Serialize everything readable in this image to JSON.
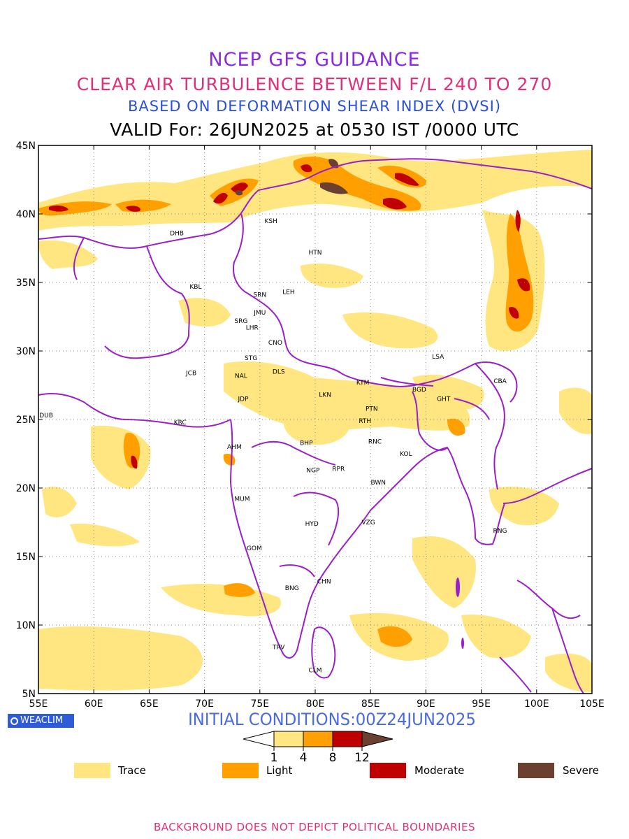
{
  "header": {
    "title": "NCEP GFS GUIDANCE",
    "subtitle": "CLEAR AIR TURBULENCE BETWEEN F/L 240 TO 270",
    "index": "BASED ON DEFORMATION SHEAR INDEX (DVSI)",
    "valid": "VALID For: 26JUN2025 at 0530 IST /0000 UTC"
  },
  "map": {
    "lon_range": [
      55,
      105
    ],
    "lat_range": [
      5,
      45
    ],
    "lon_ticks": [
      "55E",
      "60E",
      "65E",
      "70E",
      "75E",
      "80E",
      "85E",
      "90E",
      "95E",
      "100E",
      "105E"
    ],
    "lat_ticks": [
      "45N",
      "40N",
      "35N",
      "30N",
      "25N",
      "20N",
      "15N",
      "10N",
      "5N"
    ],
    "grid": "dotted",
    "boundary_color": "#9b1fc8",
    "stations": [
      {
        "code": "KSH",
        "lon": 76.0,
        "lat": 39.5
      },
      {
        "code": "DHB",
        "lon": 67.5,
        "lat": 38.6
      },
      {
        "code": "HTN",
        "lon": 80.0,
        "lat": 37.2
      },
      {
        "code": "KBL",
        "lon": 69.2,
        "lat": 34.7
      },
      {
        "code": "SRN",
        "lon": 75.0,
        "lat": 34.1
      },
      {
        "code": "LEH",
        "lon": 77.6,
        "lat": 34.3
      },
      {
        "code": "JMU",
        "lon": 75.0,
        "lat": 32.8
      },
      {
        "code": "SRG",
        "lon": 73.3,
        "lat": 32.2
      },
      {
        "code": "LHR",
        "lon": 74.3,
        "lat": 31.7
      },
      {
        "code": "CNO",
        "lon": 76.4,
        "lat": 30.6
      },
      {
        "code": "STG",
        "lon": 74.2,
        "lat": 29.5
      },
      {
        "code": "DLS",
        "lon": 76.7,
        "lat": 28.5
      },
      {
        "code": "JCB",
        "lon": 68.8,
        "lat": 28.4
      },
      {
        "code": "NAL",
        "lon": 73.3,
        "lat": 28.2
      },
      {
        "code": "LSA",
        "lon": 91.1,
        "lat": 29.6
      },
      {
        "code": "KTM",
        "lon": 84.3,
        "lat": 27.7
      },
      {
        "code": "CBA",
        "lon": 96.7,
        "lat": 27.8
      },
      {
        "code": "LKN",
        "lon": 80.9,
        "lat": 26.8
      },
      {
        "code": "BGD",
        "lon": 89.4,
        "lat": 27.2
      },
      {
        "code": "GHT",
        "lon": 91.6,
        "lat": 26.5
      },
      {
        "code": "JDP",
        "lon": 73.5,
        "lat": 26.5
      },
      {
        "code": "PTN",
        "lon": 85.1,
        "lat": 25.8
      },
      {
        "code": "DUB",
        "lon": 55.7,
        "lat": 25.3
      },
      {
        "code": "KRC",
        "lon": 67.8,
        "lat": 24.8
      },
      {
        "code": "RTH",
        "lon": 84.5,
        "lat": 24.9
      },
      {
        "code": "BHP",
        "lon": 79.2,
        "lat": 23.3
      },
      {
        "code": "AHM",
        "lon": 72.7,
        "lat": 23.0
      },
      {
        "code": "RNC",
        "lon": 85.4,
        "lat": 23.4
      },
      {
        "code": "KOL",
        "lon": 88.2,
        "lat": 22.5
      },
      {
        "code": "NGP",
        "lon": 79.8,
        "lat": 21.3
      },
      {
        "code": "RPR",
        "lon": 82.1,
        "lat": 21.4
      },
      {
        "code": "BWN",
        "lon": 85.7,
        "lat": 20.4
      },
      {
        "code": "MUM",
        "lon": 73.4,
        "lat": 19.2
      },
      {
        "code": "HYD",
        "lon": 79.7,
        "lat": 17.4
      },
      {
        "code": "VZG",
        "lon": 84.8,
        "lat": 17.5
      },
      {
        "code": "RNG",
        "lon": 96.7,
        "lat": 16.9
      },
      {
        "code": "GOM",
        "lon": 74.5,
        "lat": 15.6
      },
      {
        "code": "CHN",
        "lon": 80.8,
        "lat": 13.2
      },
      {
        "code": "BNG",
        "lon": 77.9,
        "lat": 12.7
      },
      {
        "code": "TRV",
        "lon": 76.7,
        "lat": 8.4
      },
      {
        "code": "CLM",
        "lon": 80.0,
        "lat": 6.7
      }
    ]
  },
  "branding": {
    "label": "WEACLIM"
  },
  "initial_conditions": "INITIAL CONDITIONS:00Z24JUN2025",
  "colorbar": {
    "ticks": [
      "1",
      "4",
      "8",
      "12"
    ],
    "colors": [
      "#ffffff",
      "#ffe680",
      "#ffa000",
      "#c00000",
      "#6b4030"
    ]
  },
  "legend": [
    {
      "label": "Trace",
      "color": "#ffe680"
    },
    {
      "label": "Light",
      "color": "#ffa000"
    },
    {
      "label": "Moderate",
      "color": "#c00000"
    },
    {
      "label": "Severe",
      "color": "#6b4030"
    }
  ],
  "footer": "BACKGROUND DOES NOT DEPICT POLITICAL BOUNDARIES"
}
